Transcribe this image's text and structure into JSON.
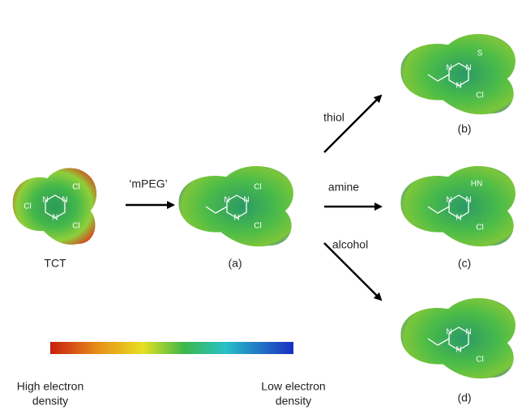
{
  "molecules": [
    {
      "label": "TCT",
      "atoms": [
        "Cl",
        "Cl",
        "Cl",
        "N",
        "N",
        "N"
      ]
    },
    {
      "label": "(a)",
      "atoms": [
        "Cl",
        "Cl",
        "N",
        "N",
        "N"
      ]
    },
    {
      "label": "(b)",
      "atoms": [
        "S",
        "Cl",
        "N",
        "N",
        "N"
      ]
    },
    {
      "label": "(c)",
      "atoms": [
        "HN",
        "Cl",
        "N",
        "N",
        "N"
      ]
    },
    {
      "label": "(d)",
      "atoms": [
        "Cl",
        "N",
        "N",
        "N"
      ]
    }
  ],
  "arrows": [
    {
      "label": "‘mPEG’"
    },
    {
      "label": "thiol"
    },
    {
      "label": "amine"
    },
    {
      "label": "alcohol"
    }
  ],
  "colorbar": {
    "high_label": [
      "High electron",
      "density"
    ],
    "low_label": [
      "Low electron",
      "density"
    ]
  }
}
